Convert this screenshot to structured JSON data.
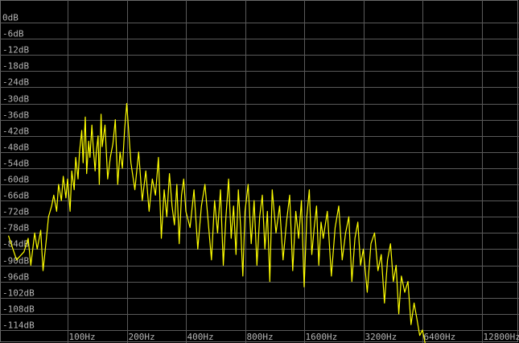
{
  "chart_data": {
    "type": "line",
    "title": "",
    "xlabel": "",
    "ylabel": "",
    "x_scale": "log2",
    "xlim": [
      50,
      12800
    ],
    "ylim": [
      -120,
      0
    ],
    "grid": true,
    "y_ticks": [
      "0dB",
      "-6dB",
      "-12dB",
      "-18dB",
      "-24dB",
      "-30dB",
      "-36dB",
      "-42dB",
      "-48dB",
      "-54dB",
      "-60dB",
      "-66dB",
      "-72dB",
      "-78dB",
      "-84dB",
      "-90dB",
      "-96dB",
      "-102dB",
      "-108dB",
      "-114dB"
    ],
    "y_tick_values": [
      0,
      -6,
      -12,
      -18,
      -24,
      -30,
      -36,
      -42,
      -48,
      -54,
      -60,
      -66,
      -72,
      -78,
      -84,
      -90,
      -96,
      -102,
      -108,
      -114
    ],
    "x_ticks": [
      "100Hz",
      "200Hz",
      "400Hz",
      "800Hz",
      "1600Hz",
      "3200Hz",
      "6400Hz",
      "12800Hz"
    ],
    "x_tick_values": [
      100,
      200,
      400,
      800,
      1600,
      3200,
      6400,
      12800
    ],
    "series": [
      {
        "color": "#ffff00",
        "x": [
          50,
          55,
          60,
          63,
          65,
          68,
          70,
          73,
          75,
          78,
          80,
          83,
          85,
          88,
          90,
          93,
          95,
          98,
          100,
          103,
          105,
          108,
          110,
          113,
          115,
          118,
          120,
          123,
          125,
          128,
          130,
          133,
          135,
          138,
          140,
          143,
          145,
          148,
          150,
          155,
          160,
          165,
          170,
          175,
          180,
          185,
          190,
          195,
          200,
          210,
          220,
          230,
          240,
          250,
          260,
          270,
          280,
          290,
          300,
          310,
          320,
          330,
          340,
          350,
          360,
          370,
          380,
          390,
          400,
          420,
          440,
          460,
          480,
          500,
          520,
          540,
          560,
          580,
          600,
          620,
          640,
          660,
          680,
          700,
          720,
          740,
          760,
          780,
          800,
          830,
          860,
          890,
          920,
          950,
          980,
          1010,
          1040,
          1070,
          1100,
          1150,
          1200,
          1250,
          1300,
          1350,
          1400,
          1450,
          1500,
          1550,
          1600,
          1650,
          1700,
          1750,
          1800,
          1850,
          1900,
          1950,
          2000,
          2100,
          2200,
          2300,
          2400,
          2500,
          2600,
          2700,
          2800,
          2900,
          3000,
          3100,
          3200,
          3350,
          3500,
          3650,
          3800,
          3950,
          4100,
          4250,
          4400,
          4550,
          4700,
          4850,
          5000,
          5200,
          5400,
          5600,
          5800,
          6000,
          6200,
          6400,
          6600
        ],
        "y": [
          -79,
          -88,
          -85,
          -80,
          -90,
          -78,
          -84,
          -77,
          -92,
          -80,
          -72,
          -68,
          -64,
          -70,
          -60,
          -66,
          -57,
          -65,
          -58,
          -70,
          -55,
          -62,
          -50,
          -58,
          -48,
          -40,
          -52,
          -35,
          -56,
          -44,
          -50,
          -38,
          -46,
          -55,
          -48,
          -42,
          -60,
          -34,
          -46,
          -38,
          -58,
          -50,
          -45,
          -36,
          -60,
          -48,
          -54,
          -40,
          -30,
          -52,
          -62,
          -48,
          -66,
          -55,
          -70,
          -58,
          -64,
          -50,
          -80,
          -62,
          -72,
          -56,
          -68,
          -75,
          -60,
          -82,
          -64,
          -58,
          -70,
          -76,
          -62,
          -84,
          -68,
          -60,
          -74,
          -88,
          -66,
          -78,
          -62,
          -90,
          -72,
          -58,
          -80,
          -68,
          -86,
          -62,
          -76,
          -94,
          -70,
          -60,
          -82,
          -66,
          -90,
          -72,
          -64,
          -84,
          -70,
          -96,
          -62,
          -78,
          -68,
          -88,
          -74,
          -64,
          -92,
          -70,
          -80,
          -66,
          -98,
          -72,
          -62,
          -86,
          -76,
          -68,
          -90,
          -74,
          -80,
          -70,
          -94,
          -76,
          -68,
          -88,
          -78,
          -72,
          -96,
          -80,
          -74,
          -90,
          -84,
          -100,
          -82,
          -78,
          -92,
          -86,
          -104,
          -88,
          -82,
          -96,
          -90,
          -108,
          -94,
          -100,
          -96,
          -112,
          -104,
          -110,
          -116,
          -114,
          -119
        ]
      }
    ]
  }
}
